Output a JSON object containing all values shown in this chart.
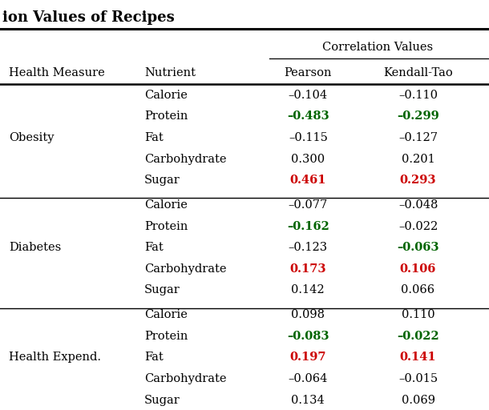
{
  "title": "ion Values of Recipes",
  "groups": [
    {
      "health_measure": "Obesity",
      "rows": [
        {
          "nutrient": "Calorie",
          "pearson": "–0.104",
          "kendall": "–0.110",
          "pearson_color": "black",
          "kendall_color": "black",
          "bold": false
        },
        {
          "nutrient": "Protein",
          "pearson": "–0.483",
          "kendall": "–0.299",
          "pearson_color": "green",
          "kendall_color": "green",
          "bold": true
        },
        {
          "nutrient": "Fat",
          "pearson": "–0.115",
          "kendall": "–0.127",
          "pearson_color": "black",
          "kendall_color": "black",
          "bold": false
        },
        {
          "nutrient": "Carbohydrate",
          "pearson": "0.300",
          "kendall": "0.201",
          "pearson_color": "black",
          "kendall_color": "black",
          "bold": false
        },
        {
          "nutrient": "Sugar",
          "pearson": "0.461",
          "kendall": "0.293",
          "pearson_color": "red",
          "kendall_color": "red",
          "bold": true
        }
      ]
    },
    {
      "health_measure": "Diabetes",
      "rows": [
        {
          "nutrient": "Calorie",
          "pearson": "–0.077",
          "kendall": "–0.048",
          "pearson_color": "black",
          "kendall_color": "black",
          "bold": false
        },
        {
          "nutrient": "Protein",
          "pearson": "–0.162",
          "kendall": "–0.022",
          "pearson_color": "green",
          "kendall_color": "black",
          "bold_p": true,
          "bold_k": false
        },
        {
          "nutrient": "Fat",
          "pearson": "–0.123",
          "kendall": "–0.063",
          "pearson_color": "black",
          "kendall_color": "green",
          "bold_p": false,
          "bold_k": true
        },
        {
          "nutrient": "Carbohydrate",
          "pearson": "0.173",
          "kendall": "0.106",
          "pearson_color": "red",
          "kendall_color": "red",
          "bold": true
        },
        {
          "nutrient": "Sugar",
          "pearson": "0.142",
          "kendall": "0.066",
          "pearson_color": "black",
          "kendall_color": "black",
          "bold": false
        }
      ]
    },
    {
      "health_measure": "Health Expend.",
      "rows": [
        {
          "nutrient": "Calorie",
          "pearson": "0.098",
          "kendall": "0.110",
          "pearson_color": "black",
          "kendall_color": "black",
          "bold": false
        },
        {
          "nutrient": "Protein",
          "pearson": "–0.083",
          "kendall": "–0.022",
          "pearson_color": "green",
          "kendall_color": "green",
          "bold": true
        },
        {
          "nutrient": "Fat",
          "pearson": "0.197",
          "kendall": "0.141",
          "pearson_color": "red",
          "kendall_color": "red",
          "bold": true
        },
        {
          "nutrient": "Carbohydrate",
          "pearson": "–0.064",
          "kendall": "–0.015",
          "pearson_color": "black",
          "kendall_color": "black",
          "bold": false
        },
        {
          "nutrient": "Sugar",
          "pearson": "0.134",
          "kendall": "0.069",
          "pearson_color": "black",
          "kendall_color": "black",
          "bold": false
        }
      ]
    }
  ],
  "green_color": "#006400",
  "red_color": "#cc0000",
  "fontsize": 10.5,
  "header_fontsize": 10.5,
  "title_fontsize": 13
}
